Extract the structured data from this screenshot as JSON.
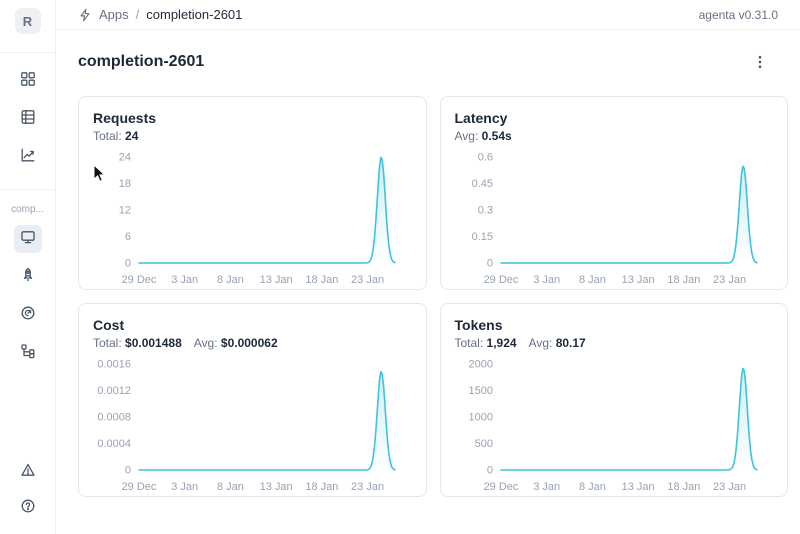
{
  "app": {
    "version_label": "agenta v0.31.0"
  },
  "breadcrumb": {
    "section": "Apps",
    "separator": "/",
    "current": "completion-2601"
  },
  "sidebar": {
    "logo_letter": "R",
    "app_label": "comp...",
    "top_icons": [
      "apps-grid-icon",
      "test-sets-icon",
      "observability-chart-icon"
    ],
    "app_icons": [
      "overview-monitor-icon",
      "deployments-rocket-icon",
      "evaluations-dial-icon",
      "traces-tree-icon"
    ],
    "bottom_icons": [
      "alerts-triangle-icon",
      "help-icon"
    ]
  },
  "main": {
    "title": "completion-2601"
  },
  "colors": {
    "line": "#3CC3DD",
    "text_dark": "#1d2939",
    "text_gray": "#667085",
    "tick_gray": "#98a2b3"
  },
  "chart_data": [
    {
      "id": "requests",
      "type": "area",
      "title": "Requests",
      "stats": [
        {
          "label": "Total:",
          "value": "24"
        }
      ],
      "y_ticks": [
        {
          "v": 0,
          "label": "0"
        },
        {
          "v": 6,
          "label": "6"
        },
        {
          "v": 12,
          "label": "12"
        },
        {
          "v": 18,
          "label": "18"
        },
        {
          "v": 24,
          "label": "24"
        }
      ],
      "y_max": 24,
      "x_ticks": [
        {
          "d": 0,
          "label": "29 Dec"
        },
        {
          "d": 5,
          "label": "3 Jan"
        },
        {
          "d": 10,
          "label": "8 Jan"
        },
        {
          "d": 15,
          "label": "13 Jan"
        },
        {
          "d": 20,
          "label": "18 Jan"
        },
        {
          "d": 25,
          "label": "23 Jan"
        }
      ],
      "domain_days": 28,
      "baseline": 0,
      "peak_day": 26.5,
      "peak_value": 24,
      "spike_sigma": 0.62
    },
    {
      "id": "latency",
      "type": "area",
      "title": "Latency",
      "stats": [
        {
          "label": "Avg:",
          "value": "0.54s"
        }
      ],
      "y_ticks": [
        {
          "v": 0,
          "label": "0"
        },
        {
          "v": 0.15,
          "label": "0.15"
        },
        {
          "v": 0.3,
          "label": "0.3"
        },
        {
          "v": 0.45,
          "label": "0.45"
        },
        {
          "v": 0.6,
          "label": "0.6"
        }
      ],
      "y_max": 0.6,
      "x_ticks": [
        {
          "d": 0,
          "label": "29 Dec"
        },
        {
          "d": 5,
          "label": "3 Jan"
        },
        {
          "d": 10,
          "label": "8 Jan"
        },
        {
          "d": 15,
          "label": "13 Jan"
        },
        {
          "d": 20,
          "label": "18 Jan"
        },
        {
          "d": 25,
          "label": "23 Jan"
        }
      ],
      "domain_days": 28,
      "baseline": 0,
      "peak_day": 26.5,
      "peak_value": 0.55,
      "spike_sigma": 0.62
    },
    {
      "id": "cost",
      "type": "area",
      "title": "Cost",
      "stats": [
        {
          "label": "Total:",
          "value": "$0.001488"
        },
        {
          "label": "Avg:",
          "value": "$0.000062"
        }
      ],
      "y_ticks": [
        {
          "v": 0,
          "label": "0"
        },
        {
          "v": 0.0004,
          "label": "0.0004"
        },
        {
          "v": 0.0008,
          "label": "0.0008"
        },
        {
          "v": 0.0012,
          "label": "0.0012"
        },
        {
          "v": 0.0016,
          "label": "0.0016"
        }
      ],
      "y_max": 0.0016,
      "x_ticks": [
        {
          "d": 0,
          "label": "29 Dec"
        },
        {
          "d": 5,
          "label": "3 Jan"
        },
        {
          "d": 10,
          "label": "8 Jan"
        },
        {
          "d": 15,
          "label": "13 Jan"
        },
        {
          "d": 20,
          "label": "18 Jan"
        },
        {
          "d": 25,
          "label": "23 Jan"
        }
      ],
      "domain_days": 28,
      "baseline": 0,
      "peak_day": 26.5,
      "peak_value": 0.001488,
      "spike_sigma": 0.62
    },
    {
      "id": "tokens",
      "type": "area",
      "title": "Tokens",
      "stats": [
        {
          "label": "Total:",
          "value": "1,924"
        },
        {
          "label": "Avg:",
          "value": "80.17"
        }
      ],
      "y_ticks": [
        {
          "v": 0,
          "label": "0"
        },
        {
          "v": 500,
          "label": "500"
        },
        {
          "v": 1000,
          "label": "1000"
        },
        {
          "v": 1500,
          "label": "1500"
        },
        {
          "v": 2000,
          "label": "2000"
        }
      ],
      "y_max": 2000,
      "x_ticks": [
        {
          "d": 0,
          "label": "29 Dec"
        },
        {
          "d": 5,
          "label": "3 Jan"
        },
        {
          "d": 10,
          "label": "8 Jan"
        },
        {
          "d": 15,
          "label": "13 Jan"
        },
        {
          "d": 20,
          "label": "18 Jan"
        },
        {
          "d": 25,
          "label": "23 Jan"
        }
      ],
      "domain_days": 28,
      "baseline": 0,
      "peak_day": 26.5,
      "peak_value": 1924,
      "spike_sigma": 0.62
    }
  ]
}
